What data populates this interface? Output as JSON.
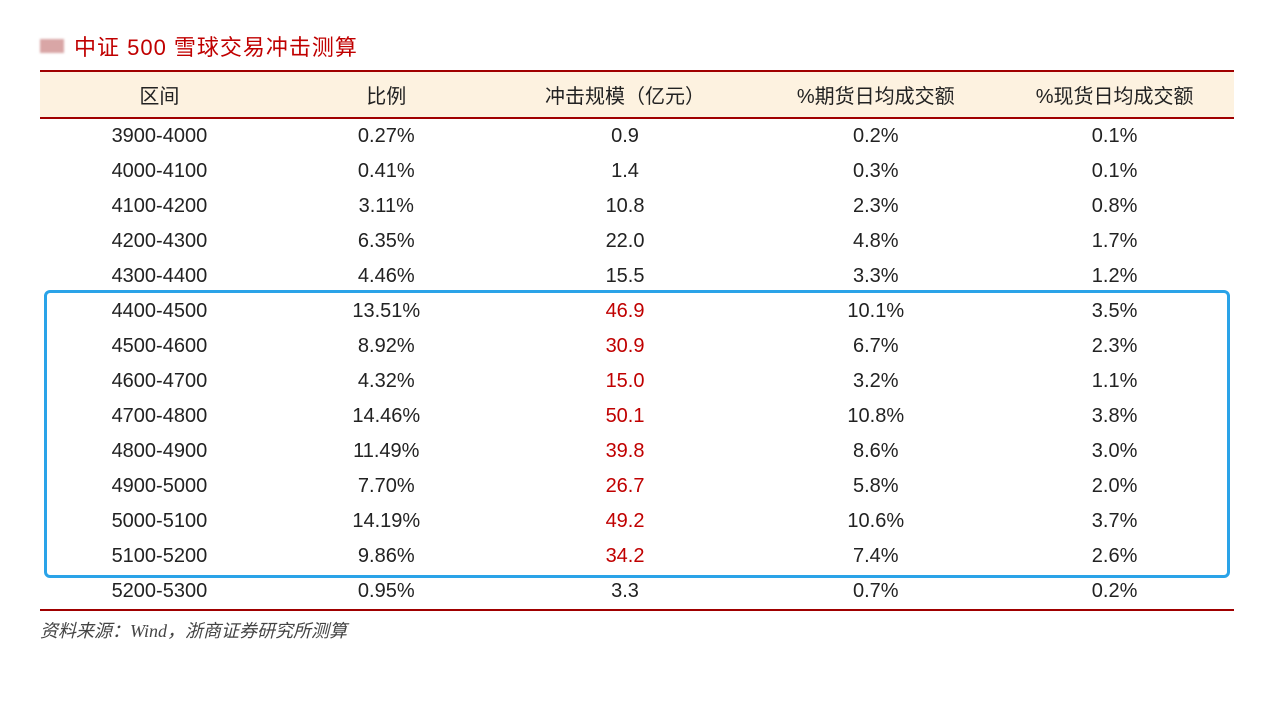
{
  "title": "中证 500 雪球交易冲击测算",
  "source": "资料来源：Wind，浙商证券研究所测算",
  "table": {
    "columns": [
      "区间",
      "比例",
      "冲击规模（亿元）",
      "%期货日均成交额",
      "%现货日均成交额"
    ],
    "col_widths_pct": [
      20,
      18,
      22,
      20,
      20
    ],
    "header_bg": "#fdf2e0",
    "border_color": "#a00000",
    "text_color": "#222222",
    "highlight_color": "#c00000",
    "box_border_color": "#2aa3e8",
    "fontsize": 20,
    "rows": [
      {
        "range": "3900-4000",
        "ratio": "0.27%",
        "impact": "0.9",
        "fut": "0.2%",
        "spot": "0.1%",
        "hl": false
      },
      {
        "range": "4000-4100",
        "ratio": "0.41%",
        "impact": "1.4",
        "fut": "0.3%",
        "spot": "0.1%",
        "hl": false
      },
      {
        "range": "4100-4200",
        "ratio": "3.11%",
        "impact": "10.8",
        "fut": "2.3%",
        "spot": "0.8%",
        "hl": false
      },
      {
        "range": "4200-4300",
        "ratio": "6.35%",
        "impact": "22.0",
        "fut": "4.8%",
        "spot": "1.7%",
        "hl": false
      },
      {
        "range": "4300-4400",
        "ratio": "4.46%",
        "impact": "15.5",
        "fut": "3.3%",
        "spot": "1.2%",
        "hl": false
      },
      {
        "range": "4400-4500",
        "ratio": "13.51%",
        "impact": "46.9",
        "fut": "10.1%",
        "spot": "3.5%",
        "hl": true
      },
      {
        "range": "4500-4600",
        "ratio": "8.92%",
        "impact": "30.9",
        "fut": "6.7%",
        "spot": "2.3%",
        "hl": true
      },
      {
        "range": "4600-4700",
        "ratio": "4.32%",
        "impact": "15.0",
        "fut": "3.2%",
        "spot": "1.1%",
        "hl": true
      },
      {
        "range": "4700-4800",
        "ratio": "14.46%",
        "impact": "50.1",
        "fut": "10.8%",
        "spot": "3.8%",
        "hl": true
      },
      {
        "range": "4800-4900",
        "ratio": "11.49%",
        "impact": "39.8",
        "fut": "8.6%",
        "spot": "3.0%",
        "hl": true
      },
      {
        "range": "4900-5000",
        "ratio": "7.70%",
        "impact": "26.7",
        "fut": "5.8%",
        "spot": "2.0%",
        "hl": true
      },
      {
        "range": "5000-5100",
        "ratio": "14.19%",
        "impact": "49.2",
        "fut": "10.6%",
        "spot": "3.7%",
        "hl": true
      },
      {
        "range": "5100-5200",
        "ratio": "9.86%",
        "impact": "34.2",
        "fut": "7.4%",
        "spot": "2.6%",
        "hl": true
      },
      {
        "range": "5200-5300",
        "ratio": "0.95%",
        "impact": "3.3",
        "fut": "0.7%",
        "spot": "0.2%",
        "hl": false
      }
    ],
    "highlight_box": {
      "first_row_index": 5,
      "last_row_index": 12
    }
  }
}
